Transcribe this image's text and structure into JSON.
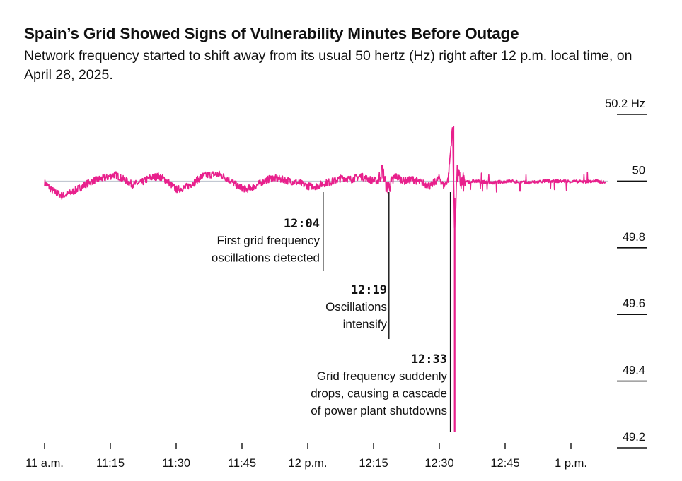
{
  "chart_data": {
    "type": "line",
    "title": "Spain’s Grid Showed Signs of Vulnerability Minutes Before Outage",
    "subtitle": "Network frequency started to shift away from its usual 50 hertz (Hz) right after 12 p.m. local time, on April 28, 2025.",
    "xlabel": "",
    "ylabel": "",
    "xlim": [
      "11:00",
      "13:15"
    ],
    "ylim": [
      49.2,
      50.2
    ],
    "y_ticks": [
      {
        "value": 50.2,
        "label": "50.2 Hz"
      },
      {
        "value": 50.0,
        "label": "50"
      },
      {
        "value": 49.8,
        "label": "49.8"
      },
      {
        "value": 49.6,
        "label": "49.6"
      },
      {
        "value": 49.4,
        "label": "49.4"
      },
      {
        "value": 49.2,
        "label": "49.2"
      }
    ],
    "x_ticks": [
      {
        "time": "11:00",
        "label": "11 a.m."
      },
      {
        "time": "11:15",
        "label": "11:15"
      },
      {
        "time": "11:30",
        "label": "11:30"
      },
      {
        "time": "11:45",
        "label": "11:45"
      },
      {
        "time": "12:00",
        "label": "12 p.m."
      },
      {
        "time": "12:15",
        "label": "12:15"
      },
      {
        "time": "12:30",
        "label": "12:30"
      },
      {
        "time": "12:45",
        "label": "12:45"
      },
      {
        "time": "13:00",
        "label": "1 p.m."
      }
    ],
    "reference_line": 50.0,
    "series": [
      {
        "color": "#e8208c",
        "x": [
          "11:00",
          "11:02",
          "11:04",
          "11:06",
          "11:08",
          "11:10",
          "11:12",
          "11:14",
          "11:16",
          "11:18",
          "11:20",
          "11:22",
          "11:24",
          "11:26",
          "11:28",
          "11:30",
          "11:32",
          "11:34",
          "11:36",
          "11:38",
          "11:40",
          "11:42",
          "11:44",
          "11:46",
          "11:48",
          "11:50",
          "11:52",
          "11:54",
          "11:56",
          "11:58",
          "12:00",
          "12:02",
          "12:04",
          "12:06",
          "12:08",
          "12:10",
          "12:12",
          "12:14",
          "12:16",
          "12:17",
          "12:18",
          "12:19",
          "12:20",
          "12:22",
          "12:24",
          "12:26",
          "12:28",
          "12:30",
          "12:31",
          "12:32",
          "12:33",
          "12:33:30",
          "12:34",
          "12:35",
          "12:38",
          "12:42",
          "12:46",
          "12:50",
          "12:54",
          "12:58",
          "13:02",
          "13:06",
          "13:08"
        ],
        "values": [
          49.995,
          49.97,
          49.955,
          49.965,
          49.98,
          49.995,
          50.005,
          50.01,
          50.02,
          50.005,
          49.99,
          49.995,
          50.01,
          50.015,
          50.0,
          49.975,
          49.98,
          49.995,
          50.015,
          50.02,
          50.02,
          50.005,
          49.985,
          49.975,
          49.985,
          50.0,
          50.01,
          50.005,
          50.0,
          49.995,
          49.985,
          49.985,
          49.995,
          50.0,
          50.01,
          50.005,
          50.015,
          50.005,
          50.0,
          50.035,
          49.98,
          49.99,
          50.015,
          50.0,
          50.005,
          49.995,
          49.985,
          50.01,
          49.985,
          50.005,
          50.16,
          49.86,
          50.02,
          49.995,
          50.0,
          49.995,
          50.0,
          49.995,
          50.0,
          50.0,
          49.998,
          50.0,
          49.995
        ]
      }
    ],
    "annotations": [
      {
        "time_label": "12:04",
        "lines": [
          "First grid frequency",
          "oscillations detected"
        ]
      },
      {
        "time_label": "12:19",
        "lines": [
          "Oscillations",
          "intensify"
        ]
      },
      {
        "time_label": "12:33",
        "lines": [
          "Grid frequency suddenly",
          "drops, causing a cascade",
          "of power plant shutdowns"
        ]
      }
    ],
    "grid": false,
    "legend": "none"
  }
}
